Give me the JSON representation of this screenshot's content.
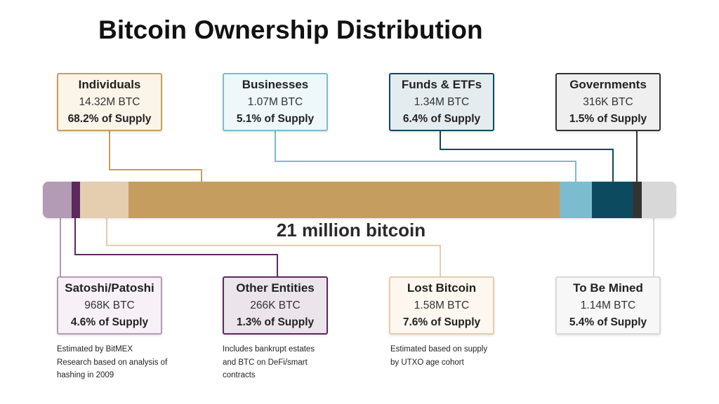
{
  "title": "Bitcoin Ownership Distribution",
  "bar_caption": "21 million bitcoin",
  "cards": {
    "individuals": {
      "name": "Individuals",
      "btc": "14.32M BTC",
      "pct": "68.2% of Supply",
      "color": "#c59e5f",
      "fill": "#fbf4e8"
    },
    "businesses": {
      "name": "Businesses",
      "btc": "1.07M BTC",
      "pct": "5.1% of Supply",
      "color": "#7bbccf",
      "fill": "#eef7fa"
    },
    "funds_etfs": {
      "name": "Funds & ETFs",
      "btc": "1.34M BTC",
      "pct": "6.4% of Supply",
      "color": "#0c4a60",
      "fill": "#e5ecef"
    },
    "governments": {
      "name": "Governments",
      "btc": "316K BTC",
      "pct": "1.5% of Supply",
      "color": "#333333",
      "fill": "#efefef"
    },
    "satoshi": {
      "name": "Satoshi/Patoshi",
      "btc": "968K BTC",
      "pct": "4.6% of Supply",
      "color": "#b39ab5",
      "fill": "#f7f1f7"
    },
    "other_entities": {
      "name": "Other Entities",
      "btc": "266K BTC",
      "pct": "1.3% of Supply",
      "color": "#5c2a5c",
      "fill": "#ebe4eb"
    },
    "lost_bitcoin": {
      "name": "Lost Bitcoin",
      "btc": "1.58M BTC",
      "pct": "7.6% of Supply",
      "color": "#e5cdb0",
      "fill": "#fdf7ef"
    },
    "to_be_mined": {
      "name": "To Be Mined",
      "btc": "1.14M BTC",
      "pct": "5.4% of Supply",
      "color": "#d8d8d8",
      "fill": "#f7f7f7"
    }
  },
  "notes": {
    "satoshi": "Estimated by BitMEX Research based on analysis of hashing in 2009",
    "other_entities": "Includes bankrupt estates and BTC on DeFi/smart contracts",
    "lost_bitcoin": "Estimated based on supply by UTXO age cohort"
  },
  "segments": [
    {
      "key": "satoshi",
      "share": 4.6,
      "color": "#b39ab5"
    },
    {
      "key": "other_entities",
      "share": 1.3,
      "color": "#5c2a5c"
    },
    {
      "key": "lost_bitcoin",
      "share": 7.6,
      "color": "#e5cdb0"
    },
    {
      "key": "individuals",
      "share": 68.2,
      "color": "#c59e5f"
    },
    {
      "key": "businesses",
      "share": 5.1,
      "color": "#7bbccf"
    },
    {
      "key": "funds_etfs",
      "share": 6.4,
      "color": "#0c4a60"
    },
    {
      "key": "governments",
      "share": 1.5,
      "color": "#333333"
    },
    {
      "key": "to_be_mined",
      "share": 5.4,
      "color": "#d8d8d8"
    }
  ]
}
